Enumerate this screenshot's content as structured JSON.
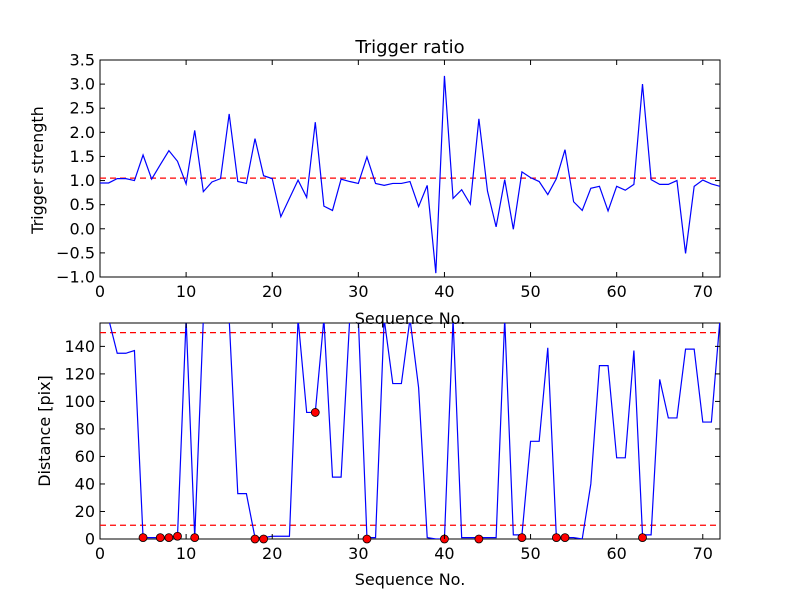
{
  "chart_data": [
    {
      "type": "line",
      "title": "Trigger ratio",
      "xlabel": "Sequence No.",
      "ylabel": "Trigger strength",
      "xlim": [
        0,
        72
      ],
      "ylim": [
        -1.0,
        3.5
      ],
      "xticks": [
        "0",
        "10",
        "20",
        "30",
        "40",
        "50",
        "60",
        "70"
      ],
      "yticks": [
        "−1.0",
        "−0.5",
        "0.0",
        "0.5",
        "1.0",
        "1.5",
        "2.0",
        "2.5",
        "3.0",
        "3.5"
      ],
      "series": [
        {
          "color": "#0000ff",
          "x": [
            0,
            1,
            2,
            3,
            4,
            5,
            6,
            7,
            8,
            9,
            10,
            11,
            12,
            13,
            14,
            15,
            16,
            17,
            18,
            19,
            20,
            21,
            22,
            23,
            24,
            25,
            26,
            27,
            28,
            29,
            30,
            31,
            32,
            33,
            34,
            35,
            36,
            37,
            38,
            39,
            40,
            41,
            42,
            43,
            44,
            45,
            46,
            47,
            48,
            49,
            50,
            51,
            52,
            53,
            54,
            55,
            56,
            57,
            58,
            59,
            60,
            61,
            62,
            63,
            64,
            65,
            66,
            67,
            68,
            69,
            70,
            71,
            72
          ],
          "values": [
            0.95,
            0.95,
            1.04,
            1.04,
            1.0,
            1.53,
            1.03,
            1.33,
            1.62,
            1.4,
            0.93,
            2.04,
            0.77,
            0.97,
            1.04,
            2.38,
            0.98,
            0.94,
            1.87,
            1.1,
            1.04,
            0.25,
            0.63,
            1.01,
            0.65,
            2.21,
            0.47,
            0.38,
            1.03,
            0.98,
            0.94,
            1.49,
            0.94,
            0.9,
            0.94,
            0.94,
            0.98,
            0.46,
            0.9,
            -0.92,
            3.17,
            0.63,
            0.81,
            0.51,
            2.28,
            0.78,
            0.04,
            1.02,
            -0.01,
            1.18,
            1.06,
            0.98,
            0.71,
            1.04,
            1.64,
            0.56,
            0.38,
            0.84,
            0.88,
            0.37,
            0.88,
            0.8,
            0.92,
            3.0,
            1.02,
            0.92,
            0.92,
            1.0,
            -0.51,
            0.88,
            1.01,
            0.93,
            0.88
          ]
        }
      ],
      "reference_lines": [
        {
          "y": 1.05,
          "color": "#ff0000",
          "style": "dashed"
        }
      ]
    },
    {
      "type": "line",
      "title": "",
      "xlabel": "Sequence No.",
      "ylabel": "Distance [pix]",
      "xlim": [
        0,
        72
      ],
      "ylim": [
        0,
        157
      ],
      "xticks": [
        "0",
        "10",
        "20",
        "30",
        "40",
        "50",
        "60",
        "70"
      ],
      "yticks": [
        "0",
        "20",
        "40",
        "60",
        "80",
        "100",
        "120",
        "140"
      ],
      "series": [
        {
          "color": "#0000ff",
          "x": [
            0,
            1,
            2,
            3,
            4,
            5,
            6,
            7,
            8,
            9,
            10,
            11,
            12,
            13,
            14,
            15,
            16,
            17,
            18,
            19,
            20,
            21,
            22,
            23,
            24,
            25,
            26,
            27,
            28,
            29,
            30,
            31,
            32,
            33,
            34,
            35,
            36,
            37,
            38,
            39,
            40,
            41,
            42,
            43,
            44,
            45,
            46,
            47,
            48,
            49,
            50,
            51,
            52,
            53,
            54,
            55,
            56,
            57,
            58,
            59,
            60,
            61,
            62,
            63,
            64,
            65,
            66,
            67,
            68,
            69,
            70,
            71,
            72
          ],
          "values": [
            160,
            160,
            135,
            135,
            137,
            1,
            1,
            1,
            1,
            2,
            160,
            1,
            160,
            160,
            160,
            160,
            33,
            33,
            1,
            1,
            2,
            2,
            2,
            160,
            92,
            92,
            160,
            45,
            45,
            160,
            160,
            1,
            1,
            160,
            113,
            113,
            160,
            110,
            1,
            0,
            0,
            160,
            1,
            1,
            1,
            1,
            1,
            160,
            3,
            3,
            71,
            71,
            139,
            1,
            1,
            1,
            0,
            40,
            126,
            126,
            59,
            59,
            137,
            3,
            3,
            116,
            88,
            88,
            138,
            138,
            85,
            85,
            160
          ],
          "clip_to_axes": true
        },
        {
          "name": "",
          "marker": "circle",
          "color": "#ff0000",
          "points": [
            [
              5,
              1
            ],
            [
              7,
              1
            ],
            [
              8,
              1
            ],
            [
              9,
              2
            ],
            [
              11,
              1
            ],
            [
              18,
              0
            ],
            [
              19,
              0
            ],
            [
              25,
              92
            ],
            [
              31,
              0
            ],
            [
              40,
              0
            ],
            [
              44,
              0
            ],
            [
              49,
              1
            ],
            [
              53,
              1
            ],
            [
              54,
              1
            ],
            [
              63,
              1
            ]
          ]
        }
      ],
      "reference_lines": [
        {
          "y": 150,
          "color": "#ff0000",
          "style": "dashed"
        },
        {
          "y": 10,
          "color": "#ff0000",
          "style": "dashed"
        }
      ]
    }
  ]
}
